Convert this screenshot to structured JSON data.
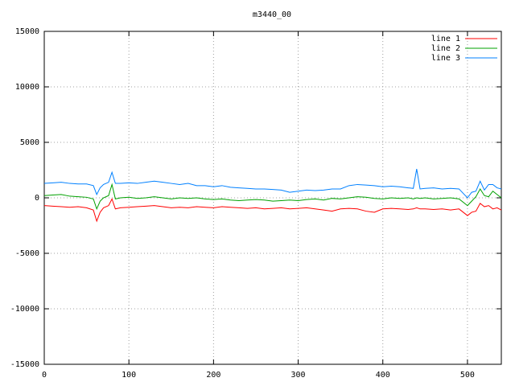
{
  "chart_data": {
    "type": "line",
    "title": "m3440_00",
    "x": [
      0,
      10,
      20,
      30,
      40,
      50,
      58,
      62,
      66,
      70,
      76,
      80,
      84,
      90,
      100,
      110,
      120,
      130,
      140,
      150,
      160,
      170,
      180,
      190,
      200,
      210,
      220,
      230,
      240,
      250,
      260,
      270,
      280,
      290,
      300,
      310,
      320,
      330,
      340,
      350,
      360,
      370,
      380,
      390,
      400,
      410,
      420,
      430,
      436,
      440,
      444,
      450,
      460,
      470,
      480,
      490,
      500,
      505,
      510,
      515,
      520,
      525,
      530,
      535,
      540
    ],
    "series": [
      {
        "name": "line 1",
        "color": "#ff0000",
        "values": [
          -700,
          -750,
          -800,
          -850,
          -800,
          -900,
          -1100,
          -2100,
          -1300,
          -900,
          -700,
          -100,
          -1000,
          -900,
          -850,
          -800,
          -750,
          -700,
          -800,
          -900,
          -850,
          -900,
          -800,
          -850,
          -900,
          -800,
          -850,
          -900,
          -950,
          -900,
          -1000,
          -950,
          -900,
          -1000,
          -950,
          -900,
          -1000,
          -1100,
          -1200,
          -1000,
          -950,
          -1000,
          -1200,
          -1300,
          -1000,
          -950,
          -1000,
          -1050,
          -1000,
          -900,
          -1000,
          -1000,
          -1050,
          -1000,
          -1100,
          -1000,
          -1600,
          -1300,
          -1200,
          -500,
          -800,
          -700,
          -1000,
          -900,
          -1100
        ]
      },
      {
        "name": "line 2",
        "color": "#00a000",
        "values": [
          200,
          250,
          300,
          150,
          100,
          50,
          -100,
          -1000,
          -300,
          0,
          200,
          1200,
          -100,
          0,
          50,
          -50,
          0,
          100,
          0,
          -100,
          0,
          -50,
          0,
          -100,
          -150,
          -100,
          -200,
          -250,
          -200,
          -150,
          -200,
          -300,
          -250,
          -200,
          -250,
          -150,
          -100,
          -200,
          -50,
          -100,
          0,
          100,
          50,
          -50,
          -100,
          0,
          -50,
          0,
          -100,
          0,
          -50,
          0,
          -100,
          -50,
          0,
          -100,
          -700,
          -300,
          100,
          800,
          200,
          100,
          600,
          300,
          0
        ]
      },
      {
        "name": "line 3",
        "color": "#0080ff",
        "values": [
          1300,
          1350,
          1400,
          1300,
          1250,
          1250,
          1100,
          300,
          900,
          1200,
          1400,
          2300,
          1300,
          1300,
          1350,
          1300,
          1400,
          1500,
          1400,
          1300,
          1200,
          1300,
          1100,
          1100,
          1000,
          1100,
          950,
          900,
          850,
          800,
          800,
          750,
          700,
          500,
          600,
          700,
          650,
          700,
          800,
          800,
          1100,
          1200,
          1150,
          1100,
          1000,
          1050,
          1000,
          900,
          850,
          2600,
          800,
          850,
          900,
          800,
          850,
          800,
          0,
          500,
          600,
          1500,
          700,
          1200,
          1200,
          900,
          800
        ]
      }
    ],
    "xlim": [
      0,
      540
    ],
    "xticks": [
      0,
      100,
      200,
      300,
      400,
      500
    ],
    "ylim": [
      -15000,
      15000
    ],
    "yticks": [
      -15000,
      -10000,
      -5000,
      0,
      5000,
      10000,
      15000
    ],
    "grid": true,
    "legend": "top-right"
  }
}
